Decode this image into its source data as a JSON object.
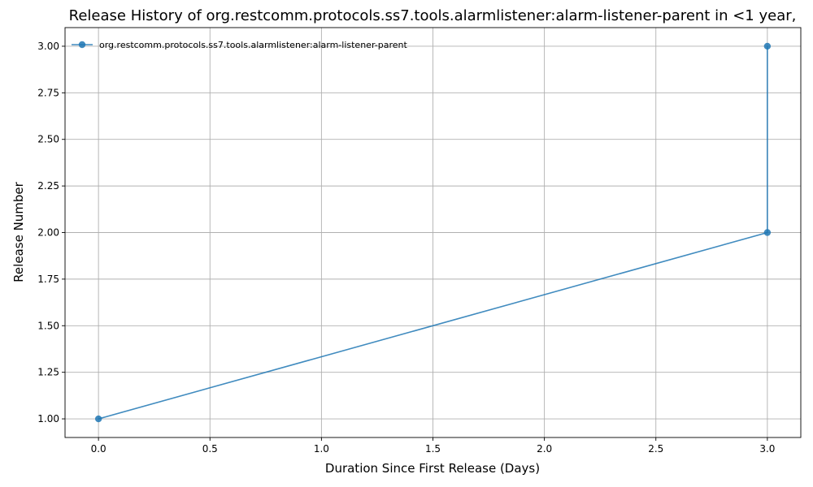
{
  "chart_data": {
    "type": "line",
    "title": "Release History of org.restcomm.protocols.ss7.tools.alarmlistener:alarm-listener-parent in <1 year,",
    "xlabel": "Duration Since First Release (Days)",
    "ylabel": "Release Number",
    "xlim": [
      -0.15,
      3.15
    ],
    "ylim": [
      0.9,
      3.1
    ],
    "xticks": [
      0.0,
      0.5,
      1.0,
      1.5,
      2.0,
      2.5,
      3.0
    ],
    "xtick_labels": [
      "0.0",
      "0.5",
      "1.0",
      "1.5",
      "2.0",
      "2.5",
      "3.0"
    ],
    "yticks": [
      1.0,
      1.25,
      1.5,
      1.75,
      2.0,
      2.25,
      2.5,
      2.75,
      3.0
    ],
    "ytick_labels": [
      "1.00",
      "1.25",
      "1.50",
      "1.75",
      "2.00",
      "2.25",
      "2.50",
      "2.75",
      "3.00"
    ],
    "grid": true,
    "legend_position": "top-left",
    "series": [
      {
        "name": "org.restcomm.protocols.ss7.tools.alarmlistener:alarm-listener-parent",
        "color": "#1f77b4",
        "marker": "circle",
        "x": [
          0,
          3,
          3
        ],
        "y": [
          1,
          2,
          3
        ]
      }
    ]
  }
}
